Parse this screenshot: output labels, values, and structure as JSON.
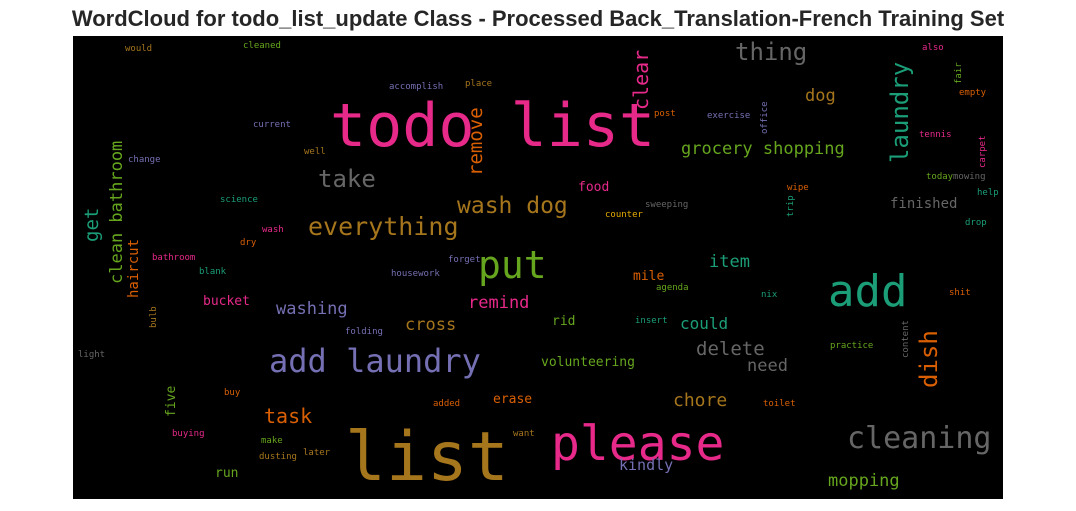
{
  "title": "WordCloud for todo_list_update Class - Processed Back_Translation-French Training Set",
  "colors": {
    "pink": "#e7298a",
    "gold": "#a6761d",
    "purple": "#7570b3",
    "teal": "#1b9e77",
    "green": "#66a61e",
    "orange": "#d95f02",
    "gray": "#666666",
    "yellow": "#e6ab02"
  },
  "words": {
    "todo_list": "todo list",
    "list": "list",
    "please": "please",
    "add": "add",
    "put": "put",
    "add_laundry": "add laundry",
    "cleaning": "cleaning",
    "everything": "everything",
    "wash_dog": "wash dog",
    "thing": "thing",
    "take": "take",
    "laundry": "laundry",
    "clear": "clear",
    "remove": "remove",
    "dish": "dish",
    "grocery_shopping": "grocery shopping",
    "dog": "dog",
    "clean_bathroom": "clean bathroom",
    "get": "get",
    "item": "item",
    "remind": "remind",
    "washing": "washing",
    "cross": "cross",
    "delete": "delete",
    "could": "could",
    "need": "need",
    "task": "task",
    "chore": "chore",
    "mopping": "mopping",
    "kindly": "kindly",
    "finished": "finished",
    "haircut": "haircut",
    "food": "food",
    "bucket": "bucket",
    "mile": "mile",
    "volunteering": "volunteering",
    "rid": "rid",
    "erase": "erase",
    "run": "run",
    "five": "five",
    "would": "would",
    "cleaned": "cleaned",
    "accomplish": "accomplish",
    "place": "place",
    "also": "also",
    "fair": "fair",
    "empty": "empty",
    "office": "office",
    "exercise": "exercise",
    "post": "post",
    "current": "current",
    "well": "well",
    "change": "change",
    "tennis": "tennis",
    "carpet": "carpet",
    "today": "today",
    "mowing": "mowing",
    "help": "help",
    "wipe": "wipe",
    "trip": "trip",
    "science": "science",
    "sweeping": "sweeping",
    "counter": "counter",
    "drop": "drop",
    "wash": "wash",
    "dry": "dry",
    "bathroom": "bathroom",
    "forget": "forget",
    "blank": "blank",
    "housework": "housework",
    "agenda": "agenda",
    "nix": "nix",
    "shit": "shit",
    "bulb": "bulb",
    "folding": "folding",
    "insert": "insert",
    "content": "content",
    "practice": "practice",
    "light": "light",
    "buy": "buy",
    "added": "added",
    "toilet": "toilet",
    "buying": "buying",
    "make": "make",
    "want": "want",
    "dusting": "dusting",
    "later": "later"
  }
}
